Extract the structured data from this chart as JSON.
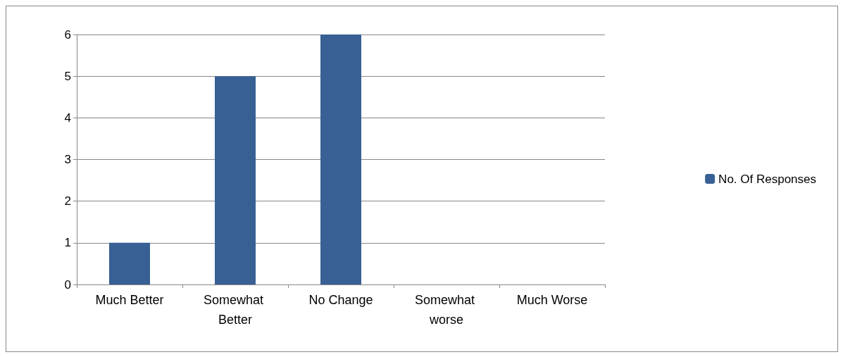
{
  "chart_data": {
    "type": "bar",
    "categories": [
      "Much Better",
      "Somewhat Better",
      "No Change",
      "Somewhat worse",
      "Much Worse"
    ],
    "series": [
      {
        "name": "No. Of Responses",
        "color": "#386095",
        "values": [
          1,
          5,
          6,
          0,
          0
        ]
      }
    ],
    "ylim": [
      0,
      6
    ],
    "yticks": [
      0,
      1,
      2,
      3,
      4,
      5,
      6
    ],
    "grid": "y",
    "legend": "right"
  }
}
